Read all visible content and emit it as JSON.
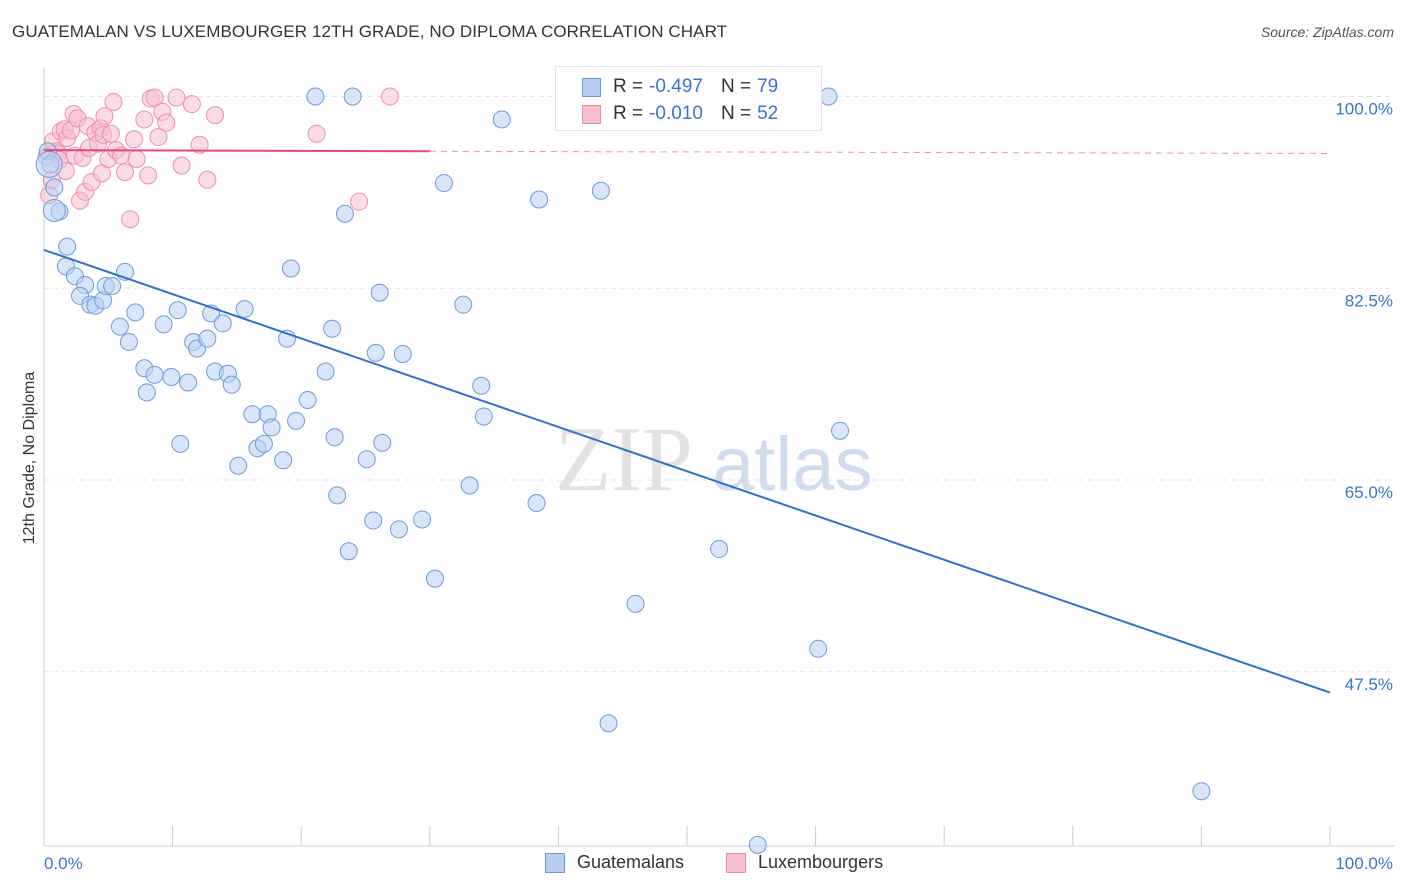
{
  "title": "GUATEMALAN VS LUXEMBOURGER 12TH GRADE, NO DIPLOMA CORRELATION CHART",
  "source": "Source: ZipAtlas.com",
  "watermark": {
    "zip": "ZIP",
    "atlas": "atlas"
  },
  "colors": {
    "blue_fill": "#b9cff2",
    "blue_stroke": "#6b9be0",
    "blue_line": "#2f6fd0",
    "pink_fill": "#f7bfd0",
    "pink_stroke": "#ee8eaa",
    "pink_line": "#e8467a",
    "grid": "#e6e6e6",
    "tick_label": "#3b73d1"
  },
  "legend_top": [
    {
      "r_label": "R =",
      "r_value": "-0.497",
      "n_label": "N =",
      "n_value": "79"
    },
    {
      "r_label": "R =",
      "r_value": "-0.010",
      "n_label": "N =",
      "n_value": "52"
    }
  ],
  "legend_bottom": [
    "Guatemalans",
    "Luxembourgers"
  ],
  "chart_data": {
    "type": "scatter",
    "title": "GUATEMALAN VS LUXEMBOURGER 12TH GRADE, NO DIPLOMA CORRELATION CHART",
    "xlabel": "",
    "ylabel": "12th Grade, No Diploma",
    "xlim": [
      0,
      100
    ],
    "ylim": [
      31.6,
      102.6
    ],
    "x_tick_labels": [
      "0.0%",
      "100.0%"
    ],
    "y_ticks": [
      47.5,
      65.0,
      82.5,
      100.0
    ],
    "y_tick_labels": [
      "47.5%",
      "65.0%",
      "82.5%",
      "100.0%"
    ],
    "grid": true,
    "legend_position": "top-center",
    "series": [
      {
        "name": "Guatemalans",
        "r": -0.497,
        "n": 79,
        "trend": {
          "x": [
            0,
            100
          ],
          "y": [
            86.0,
            45.6
          ]
        },
        "points": [
          [
            0.3,
            95.0
          ],
          [
            0.5,
            93.8
          ],
          [
            0.8,
            91.7
          ],
          [
            1.2,
            89.5
          ],
          [
            1.8,
            86.3
          ],
          [
            1.7,
            84.5
          ],
          [
            2.4,
            83.6
          ],
          [
            3.2,
            82.8
          ],
          [
            2.8,
            81.8
          ],
          [
            3.6,
            81.0
          ],
          [
            4.0,
            80.9
          ],
          [
            4.6,
            81.4
          ],
          [
            4.8,
            82.7
          ],
          [
            5.3,
            82.7
          ],
          [
            6.3,
            84.0
          ],
          [
            5.9,
            79.0
          ],
          [
            7.1,
            80.3
          ],
          [
            6.6,
            77.6
          ],
          [
            7.8,
            75.2
          ],
          [
            8.0,
            73.0
          ],
          [
            8.6,
            74.6
          ],
          [
            9.3,
            79.2
          ],
          [
            9.9,
            74.4
          ],
          [
            10.4,
            80.5
          ],
          [
            10.6,
            68.3
          ],
          [
            11.2,
            73.9
          ],
          [
            11.6,
            77.6
          ],
          [
            11.9,
            77.0
          ],
          [
            12.7,
            77.9
          ],
          [
            13.0,
            80.2
          ],
          [
            13.3,
            74.9
          ],
          [
            13.9,
            79.3
          ],
          [
            14.3,
            74.7
          ],
          [
            14.6,
            73.7
          ],
          [
            15.1,
            66.3
          ],
          [
            15.6,
            80.6
          ],
          [
            16.2,
            71.0
          ],
          [
            16.6,
            67.9
          ],
          [
            17.1,
            68.3
          ],
          [
            17.4,
            71.0
          ],
          [
            17.7,
            69.8
          ],
          [
            18.6,
            66.8
          ],
          [
            18.9,
            77.9
          ],
          [
            19.2,
            84.3
          ],
          [
            19.6,
            70.4
          ],
          [
            20.5,
            72.3
          ],
          [
            21.1,
            100.0
          ],
          [
            21.9,
            74.9
          ],
          [
            22.4,
            78.8
          ],
          [
            22.6,
            68.9
          ],
          [
            22.8,
            63.6
          ],
          [
            23.4,
            89.3
          ],
          [
            23.7,
            58.5
          ],
          [
            24.0,
            100.0
          ],
          [
            25.1,
            66.9
          ],
          [
            25.6,
            61.3
          ],
          [
            25.8,
            76.6
          ],
          [
            26.1,
            82.1
          ],
          [
            26.3,
            68.4
          ],
          [
            27.6,
            60.5
          ],
          [
            27.9,
            76.5
          ],
          [
            29.4,
            61.4
          ],
          [
            30.4,
            56.0
          ],
          [
            31.1,
            92.1
          ],
          [
            32.6,
            81.0
          ],
          [
            33.1,
            64.5
          ],
          [
            34.0,
            73.6
          ],
          [
            34.2,
            70.8
          ],
          [
            35.6,
            97.9
          ],
          [
            38.3,
            62.9
          ],
          [
            38.5,
            90.6
          ],
          [
            43.3,
            91.4
          ],
          [
            46.0,
            53.7
          ],
          [
            43.9,
            42.8
          ],
          [
            52.5,
            58.7
          ],
          [
            60.2,
            49.6
          ],
          [
            61.0,
            100.0
          ],
          [
            61.9,
            69.5
          ],
          [
            90.0,
            36.6
          ],
          [
            55.5,
            31.7
          ]
        ]
      },
      {
        "name": "Luxembourgers",
        "r": -0.01,
        "n": 52,
        "trend": {
          "x": [
            0,
            30
          ],
          "y": [
            95.1,
            95.0
          ]
        },
        "trend_dashed": {
          "x": [
            30,
            100
          ],
          "y": [
            95.0,
            94.8
          ]
        },
        "points": [
          [
            0.2,
            94.5
          ],
          [
            0.4,
            91.0
          ],
          [
            0.6,
            92.4
          ],
          [
            0.7,
            95.9
          ],
          [
            1.0,
            95.0
          ],
          [
            1.1,
            94.8
          ],
          [
            1.2,
            94.2
          ],
          [
            1.3,
            96.8
          ],
          [
            1.6,
            97.0
          ],
          [
            1.7,
            93.2
          ],
          [
            1.8,
            96.2
          ],
          [
            2.1,
            96.9
          ],
          [
            2.3,
            98.4
          ],
          [
            2.4,
            94.6
          ],
          [
            2.6,
            98.0
          ],
          [
            2.8,
            90.5
          ],
          [
            3.0,
            94.4
          ],
          [
            3.2,
            91.3
          ],
          [
            3.4,
            97.3
          ],
          [
            3.5,
            95.3
          ],
          [
            3.7,
            92.2
          ],
          [
            4.0,
            96.7
          ],
          [
            4.2,
            95.7
          ],
          [
            4.4,
            97.1
          ],
          [
            4.5,
            93.0
          ],
          [
            4.6,
            96.5
          ],
          [
            4.7,
            98.2
          ],
          [
            5.0,
            94.3
          ],
          [
            5.2,
            96.6
          ],
          [
            5.4,
            99.5
          ],
          [
            5.6,
            95.1
          ],
          [
            6.0,
            94.6
          ],
          [
            6.3,
            93.1
          ],
          [
            6.7,
            88.8
          ],
          [
            7.0,
            96.1
          ],
          [
            7.2,
            94.3
          ],
          [
            7.8,
            97.9
          ],
          [
            8.1,
            92.8
          ],
          [
            8.3,
            99.8
          ],
          [
            8.6,
            99.9
          ],
          [
            8.9,
            96.3
          ],
          [
            9.2,
            98.6
          ],
          [
            9.5,
            97.6
          ],
          [
            10.3,
            99.9
          ],
          [
            10.7,
            93.7
          ],
          [
            11.5,
            99.3
          ],
          [
            12.1,
            95.6
          ],
          [
            12.7,
            92.4
          ],
          [
            13.3,
            98.3
          ],
          [
            21.2,
            96.6
          ],
          [
            24.5,
            90.4
          ],
          [
            26.9,
            100.0
          ]
        ]
      }
    ]
  }
}
